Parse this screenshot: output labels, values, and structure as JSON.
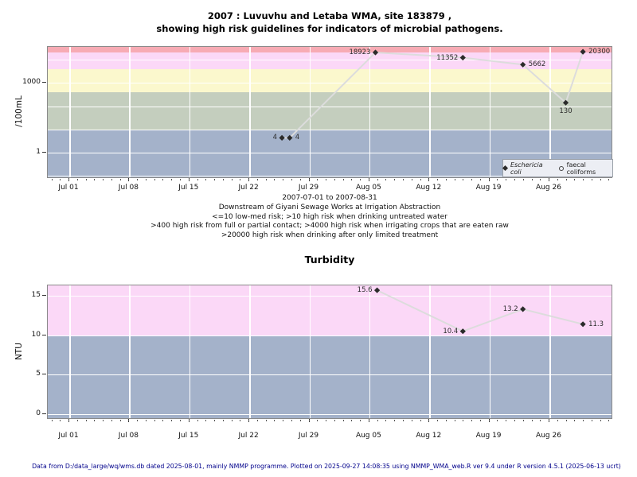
{
  "title": {
    "line1": "2007 : Luvuvhu and Letaba WMA, site 183879 ,",
    "line2": "showing high risk guidelines for indicators of microbial pathogens."
  },
  "footer": {
    "text": "Data from D:/data_large/wq/wms.db dated 2025-08-01, mainly NMMP programme. Plotted on 2025-09-27 14:08:35 using NMMP_WMA_web.R ver 9.4 under R version 4.5.1 (2025-06-13 ucrt)"
  },
  "colors": {
    "line": "#dcdcdc",
    "marker": "#2b2b2b",
    "band_blue": "#a4b2ca",
    "band_green": "#c4cebe",
    "band_yellow": "#fbf8cd",
    "band_pink": "#fbd8f7",
    "band_salmon": "#f7abb4",
    "footer_text": "#00008b"
  },
  "chart_data": [
    {
      "id": "microbial-indicators",
      "type": "line",
      "yscale": "log",
      "ylabel": "/100mL",
      "x_period": "2007-07-01 to 2007-08-31",
      "captions": [
        "Downstream of Giyani Sewage Works at Irrigation Abstraction",
        "<=10 low-med risk; >10 high risk when drinking untreated water",
        ">400 high risk from full or partial contact; >4000 high risk when irrigating crops that are eaten raw",
        ">20000 high risk when drinking after only limited treatment"
      ],
      "xticks": [
        {
          "day": 0,
          "label": "Jul 01"
        },
        {
          "day": 7,
          "label": "Jul 08"
        },
        {
          "day": 14,
          "label": "Jul 15"
        },
        {
          "day": 21,
          "label": "Jul 22"
        },
        {
          "day": 28,
          "label": "Jul 29"
        },
        {
          "day": 35,
          "label": "Aug 05"
        },
        {
          "day": 42,
          "label": "Aug 12"
        },
        {
          "day": 49,
          "label": "Aug 19"
        },
        {
          "day": 56,
          "label": "Aug 26"
        }
      ],
      "yticks": [
        {
          "value": 1000,
          "label": "1000"
        },
        {
          "value": 1,
          "label": "1"
        }
      ],
      "gridlines_y": [
        0.1,
        1,
        10,
        100,
        1000,
        10000
      ],
      "bands": [
        {
          "from_value": null,
          "to_value": 10,
          "color": "#a4b2ca",
          "risk": "<=10 low-med risk"
        },
        {
          "from_value": 10,
          "to_value": 400,
          "color": "#c4cebe",
          "risk": ">10 high risk when drinking untreated water"
        },
        {
          "from_value": 400,
          "to_value": 4000,
          "color": "#fbf8cd",
          "risk": ">400 high risk from full or partial contact"
        },
        {
          "from_value": 4000,
          "to_value": 20000,
          "color": "#fbd8f7",
          "risk": ">4000 high risk when irrigating crops that are eaten raw"
        },
        {
          "from_value": 20000,
          "to_value": null,
          "color": "#f7abb4",
          "risk": ">20000 high risk when drinking after only limited treatment"
        }
      ],
      "series": [
        {
          "name": "Eschericia coli",
          "symbol": "filled-diamond",
          "points": [
            {
              "day": 24.9,
              "value": 4,
              "label": "4",
              "label_side": "left"
            },
            {
              "day": 25.8,
              "value": 4,
              "label": "4",
              "label_side": "right"
            },
            {
              "day": 35.8,
              "value": 18923,
              "label": "18923",
              "label_side": "left"
            },
            {
              "day": 46.0,
              "value": 11352,
              "label": "11352",
              "label_side": "left"
            },
            {
              "day": 53.0,
              "value": 5662,
              "label": "5662",
              "label_side": "right"
            },
            {
              "day": 58.0,
              "value": 130,
              "label": "130",
              "label_side": "below"
            },
            {
              "day": 60.0,
              "value": 20300,
              "label": "20300",
              "label_side": "right"
            }
          ]
        },
        {
          "name": "faecal coliforms",
          "symbol": "open-circle",
          "points": []
        }
      ],
      "legend": {
        "position": "bottom-right",
        "entries": [
          {
            "label": "Eschericia coli",
            "symbol": "filled-diamond",
            "italic": true
          },
          {
            "label": "faecal coliforms",
            "symbol": "open-circle",
            "italic": false
          }
        ]
      }
    },
    {
      "id": "turbidity",
      "type": "line",
      "title": "Turbidity",
      "yscale": "linear",
      "ylabel": "NTU",
      "ylim": [
        0,
        16
      ],
      "xticks": [
        {
          "day": 0,
          "label": "Jul 01"
        },
        {
          "day": 7,
          "label": "Jul 08"
        },
        {
          "day": 14,
          "label": "Jul 15"
        },
        {
          "day": 21,
          "label": "Jul 22"
        },
        {
          "day": 28,
          "label": "Jul 29"
        },
        {
          "day": 35,
          "label": "Aug 05"
        },
        {
          "day": 42,
          "label": "Aug 12"
        },
        {
          "day": 49,
          "label": "Aug 19"
        },
        {
          "day": 56,
          "label": "Aug 26"
        }
      ],
      "yticks": [
        {
          "value": 15,
          "label": "15"
        },
        {
          "value": 10,
          "label": "10"
        },
        {
          "value": 5,
          "label": "5"
        },
        {
          "value": 0,
          "label": "0"
        }
      ],
      "gridlines_y": [
        0,
        5,
        10,
        15
      ],
      "bands": [
        {
          "from_value": null,
          "to_value": 10,
          "color": "#a4b2ca",
          "risk": "low"
        },
        {
          "from_value": 10,
          "to_value": null,
          "color": "#fbd8f7",
          "risk": "high"
        }
      ],
      "series": [
        {
          "name": "Turbidity",
          "symbol": "filled-diamond",
          "points": [
            {
              "day": 36.0,
              "value": 15.6,
              "label": "15.6",
              "label_side": "left"
            },
            {
              "day": 46.0,
              "value": 10.4,
              "label": "10.4",
              "label_side": "left"
            },
            {
              "day": 53.0,
              "value": 13.2,
              "label": "13.2",
              "label_side": "left"
            },
            {
              "day": 60.0,
              "value": 11.3,
              "label": "11.3",
              "label_side": "right"
            }
          ]
        }
      ]
    }
  ]
}
